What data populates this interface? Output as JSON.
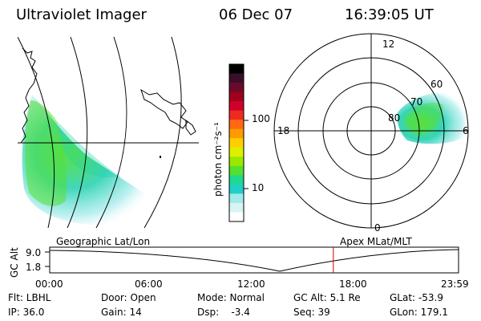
{
  "header": {
    "title": "Ultraviolet Imager",
    "date": "06 Dec 07",
    "time": "16:39:05 UT"
  },
  "colorbar": {
    "label": "photon cm⁻²s⁻¹",
    "ticks": [
      "100",
      "10"
    ],
    "colors": [
      "#000000",
      "#3a0f2a",
      "#6a0a2a",
      "#a0001a",
      "#d0002a",
      "#ee2a20",
      "#ff6a10",
      "#ff9a00",
      "#ffd000",
      "#ddf000",
      "#9ae800",
      "#55e030",
      "#20d890",
      "#20d0c8",
      "#a0eaea",
      "#d8f4f4",
      "#ffffff"
    ]
  },
  "polar": {
    "mlt_labels": {
      "top": "12",
      "left": "18",
      "right": "6",
      "bottom": "0"
    },
    "lat_labels": [
      "60",
      "70",
      "80"
    ]
  },
  "timeline": {
    "left_label": "Geographic Lat/Lon",
    "right_label": "Apex MLat/MLT",
    "y_axis_label": "GC Alt",
    "y_ticks": [
      "9.0",
      "1.8"
    ],
    "x_ticks": [
      "00:00",
      "06:00",
      "12:00",
      "18:00",
      "23:59"
    ],
    "current_time_hours": 16.65,
    "current_time_color": "#cc0000"
  },
  "footer": {
    "rows": [
      [
        "Flt: LBHL",
        "Door: Open",
        "Mode: Normal",
        "GC Alt: 5.1 Re",
        "GLat: -53.9"
      ],
      [
        "IP: 36.0",
        "Gain: 14",
        "Dsp:    -3.4",
        "Seq: 39",
        "GLon: 179.1"
      ]
    ]
  }
}
